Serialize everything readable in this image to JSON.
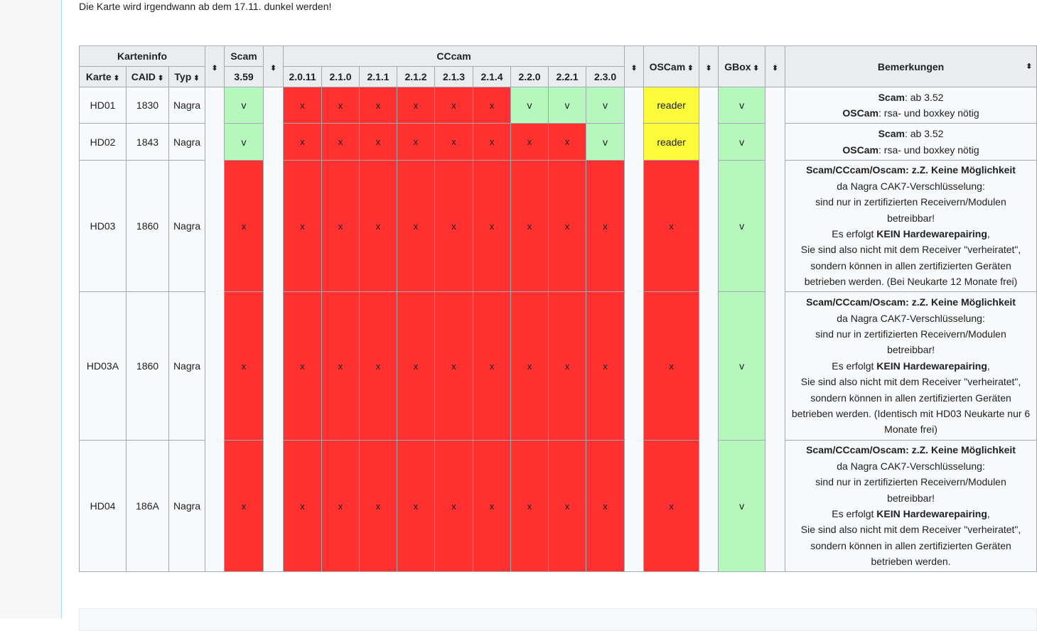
{
  "intro_text": "Die Karte wird irgendwann ab dem 17.11. dunkel werden!",
  "header": {
    "karteninfo": "Karteninfo",
    "scam": "Scam",
    "cccam": "CCcam",
    "oscam": "OSCam",
    "gbox": "GBox",
    "bemerkungen": "Bemerkungen",
    "karte": "Karte",
    "caid": "CAID",
    "typ": "Typ",
    "scam_version": "3.59",
    "cccam_versions": [
      "2.0.11",
      "2.1.0",
      "2.1.1",
      "2.1.2",
      "2.1.3",
      "2.1.4",
      "2.2.0",
      "2.2.1",
      "2.3.0"
    ],
    "sort_arrow": "⬍"
  },
  "colors": {
    "supported": "#b5f7bd",
    "unsupported": "#fe3030",
    "reader": "#fbfb3b"
  },
  "rows": [
    {
      "karte": "HD01",
      "caid": "1830",
      "typ": "Nagra",
      "scam": "v",
      "cccam": [
        "x",
        "x",
        "x",
        "x",
        "x",
        "x",
        "v",
        "v",
        "v"
      ],
      "oscam": "reader",
      "gbox": "v",
      "remarks": {
        "line1_bold": "Scam",
        "line1_rest": ": ab 3.52",
        "line2_bold": "OSCam",
        "line2_rest": ": rsa- und boxkey nötig"
      }
    },
    {
      "karte": "HD02",
      "caid": "1843",
      "typ": "Nagra",
      "scam": "v",
      "cccam": [
        "x",
        "x",
        "x",
        "x",
        "x",
        "x",
        "x",
        "x",
        "v"
      ],
      "oscam": "reader",
      "gbox": "v",
      "remarks": {
        "line1_bold": "Scam",
        "line1_rest": ": ab 3.52",
        "line2_bold": "OSCam",
        "line2_rest": ": rsa- und boxkey nötig"
      }
    },
    {
      "karte": "HD03",
      "caid": "1860",
      "typ": "Nagra",
      "scam": "x",
      "cccam": [
        "x",
        "x",
        "x",
        "x",
        "x",
        "x",
        "x",
        "x",
        "x"
      ],
      "oscam": "x",
      "gbox": "v",
      "remarks": {
        "heading": "Scam/CCcam/Oscam: z.Z. Keine Möglichkeit",
        "l1": "da Nagra CAK7-Verschlüsselung:",
        "l2": "sind nur in zertifizierten Receivern/Modulen",
        "l3": "betreibbar!",
        "l4_pre": "Es erfolgt ",
        "l4_bold": "KEIN Hardewarepairing",
        "l4_post": ",",
        "l5": "Sie sind also nicht mit dem Receiver \"verheiratet\",",
        "l6": "sondern können in allen zertifizierten Geräten",
        "l7": "betrieben werden. (Bei Neukarte 12 Monate frei)"
      }
    },
    {
      "karte": "HD03A",
      "caid": "1860",
      "typ": "Nagra",
      "scam": "x",
      "cccam": [
        "x",
        "x",
        "x",
        "x",
        "x",
        "x",
        "x",
        "x",
        "x"
      ],
      "oscam": "x",
      "gbox": "v",
      "remarks": {
        "heading": "Scam/CCcam/Oscam: z.Z. Keine Möglichkeit",
        "l1": "da Nagra CAK7-Verschlüsselung:",
        "l2": "sind nur in zertifizierten Receivern/Modulen",
        "l3": "betreibbar!",
        "l4_pre": "Es erfolgt ",
        "l4_bold": "KEIN Hardewarepairing",
        "l4_post": ",",
        "l5": "Sie sind also nicht mit dem Receiver \"verheiratet\",",
        "l6": "sondern können in allen zertifizierten Geräten",
        "l7": "betrieben werden. (Identisch mit HD03 Neukarte nur 6",
        "l8": "Monate frei)"
      }
    },
    {
      "karte": "HD04",
      "caid": "186A",
      "typ": "Nagra",
      "scam": "x",
      "cccam": [
        "x",
        "x",
        "x",
        "x",
        "x",
        "x",
        "x",
        "x",
        "x"
      ],
      "oscam": "x",
      "gbox": "v",
      "remarks": {
        "heading": "Scam/CCcam/Oscam: z.Z. Keine Möglichkeit",
        "l1": "da Nagra CAK7-Verschlüsselung:",
        "l2": "sind nur in zertifizierten Receivern/Modulen",
        "l3": "betreibbar!",
        "l4_pre": "Es erfolgt ",
        "l4_bold": "KEIN Hardewarepairing",
        "l4_post": ",",
        "l5": "Sie sind also nicht mit dem Receiver \"verheiratet\",",
        "l6": "sondern können in allen zertifizierten Geräten",
        "l7": "betrieben werden."
      }
    }
  ]
}
